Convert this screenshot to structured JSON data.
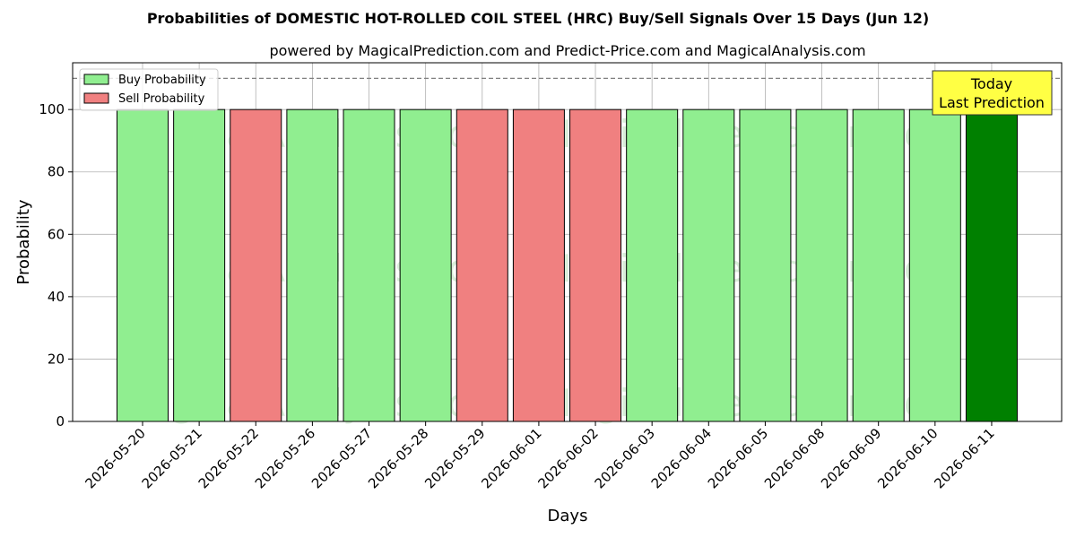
{
  "chart_data": {
    "type": "bar",
    "title": "Probabilities of DOMESTIC HOT-ROLLED COIL STEEL (HRC) Buy/Sell Signals Over 15 Days (Jun 12)",
    "subtitle": "powered by MagicalPrediction.com and Predict-Price.com and MagicalAnalysis.com",
    "xlabel": "Days",
    "ylabel": "Probability",
    "ylim": [
      0,
      115
    ],
    "yticks": [
      0,
      20,
      40,
      60,
      80,
      100
    ],
    "reference_line": 110,
    "grid": true,
    "legend_position": "top-left",
    "categories": [
      "2026-05-20",
      "2026-05-21",
      "2026-05-22",
      "2026-05-26",
      "2026-05-27",
      "2026-05-28",
      "2026-05-29",
      "2026-06-01",
      "2026-06-02",
      "2026-06-03",
      "2026-06-04",
      "2026-06-05",
      "2026-06-08",
      "2026-06-09",
      "2026-06-10",
      "2026-06-11"
    ],
    "values": [
      100,
      100,
      100,
      100,
      100,
      100,
      100,
      100,
      100,
      100,
      100,
      100,
      100,
      100,
      100,
      100
    ],
    "signals": [
      "buy",
      "buy",
      "sell",
      "buy",
      "buy",
      "buy",
      "sell",
      "sell",
      "sell",
      "buy",
      "buy",
      "buy",
      "buy",
      "buy",
      "buy",
      "today"
    ],
    "series": [
      {
        "name": "Buy Probability",
        "color": "#90ee90"
      },
      {
        "name": "Sell Probability",
        "color": "#f08080"
      }
    ],
    "today_color": "#008000",
    "annotation": {
      "line1": "Today",
      "line2": "Last Prediction",
      "color": "#ffff44"
    },
    "watermarks": [
      "MagicalAnalysis.com",
      "MagicalPrediction.com"
    ]
  }
}
